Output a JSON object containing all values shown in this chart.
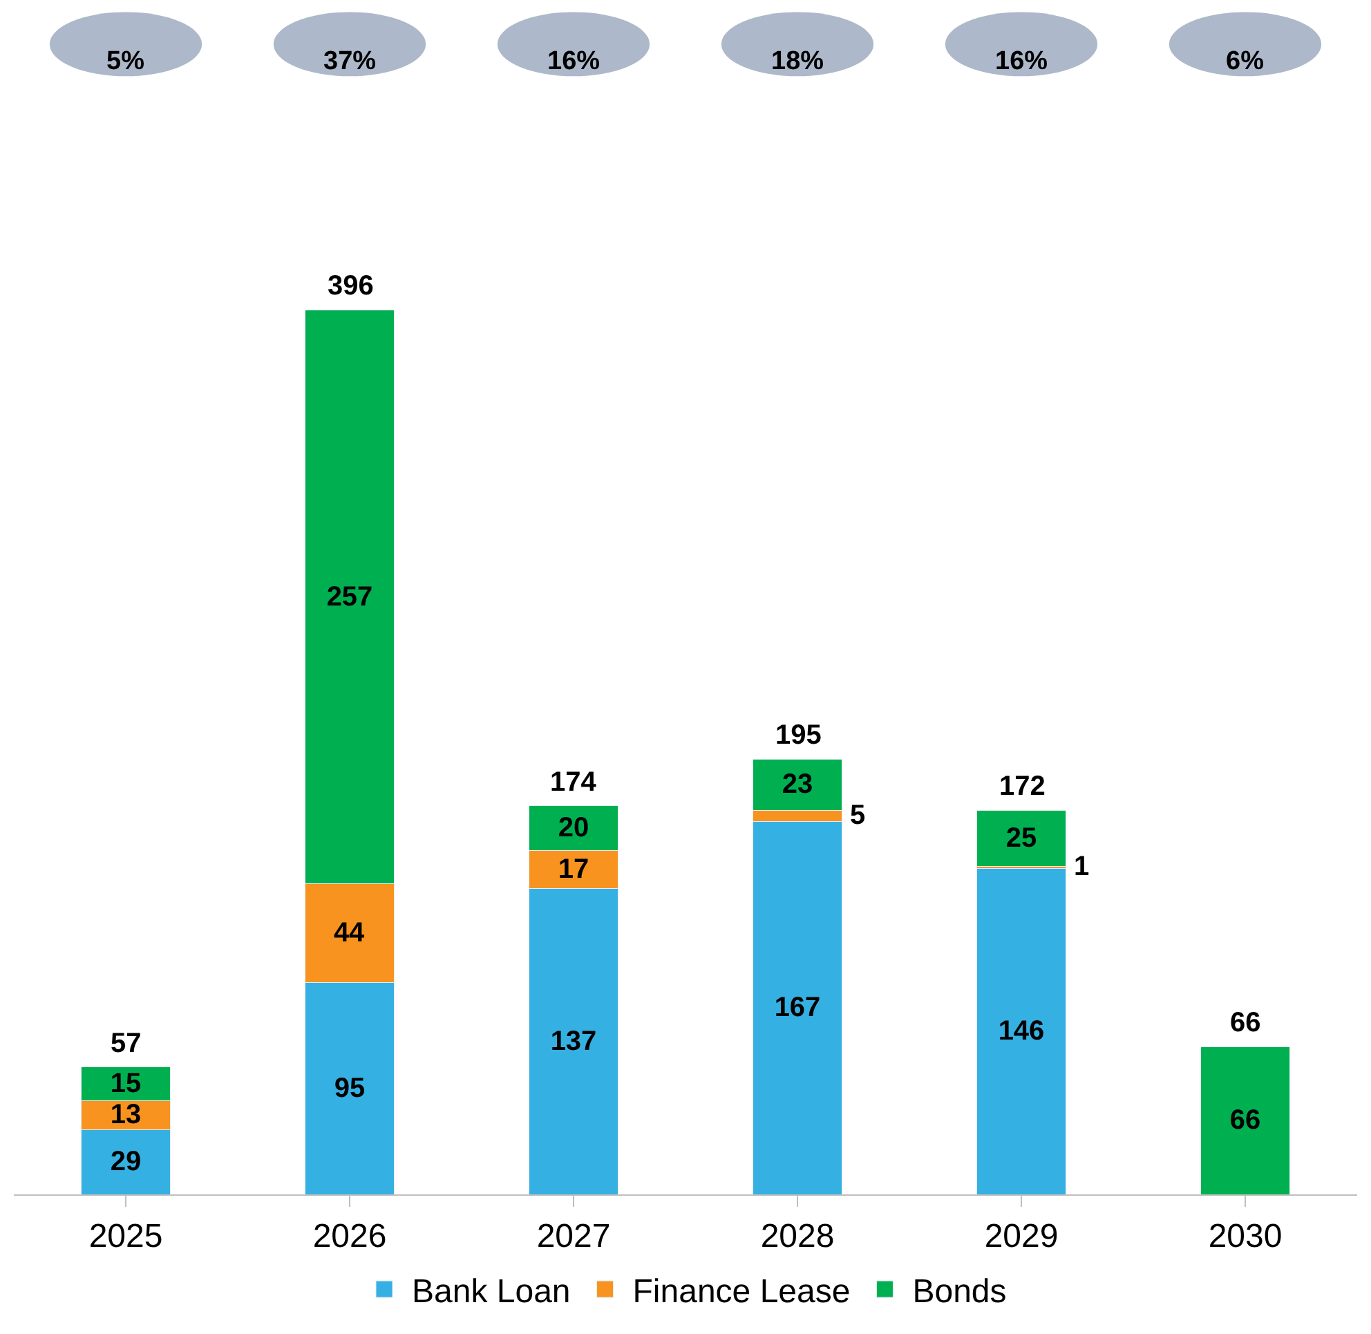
{
  "chart_data": {
    "type": "bar",
    "stacked": true,
    "categories": [
      "2025",
      "2026",
      "2027",
      "2028",
      "2029",
      "2030"
    ],
    "series": [
      {
        "name": "Bank Loan",
        "color": "#35b0e2",
        "values": [
          29,
          95,
          137,
          167,
          146,
          null
        ]
      },
      {
        "name": "Finance Lease",
        "color": "#f7931e",
        "values": [
          13,
          44,
          17,
          5,
          1,
          null
        ]
      },
      {
        "name": "Bonds",
        "color": "#00b050",
        "values": [
          15,
          257,
          20,
          23,
          25,
          66
        ]
      }
    ],
    "data_labels": true,
    "totals": [
      "57",
      "396",
      "174",
      "195",
      "172",
      "66"
    ],
    "annotations": [
      "5%",
      "37%",
      "16%",
      "18%",
      "16%",
      "6%"
    ],
    "legend": "bottom"
  }
}
